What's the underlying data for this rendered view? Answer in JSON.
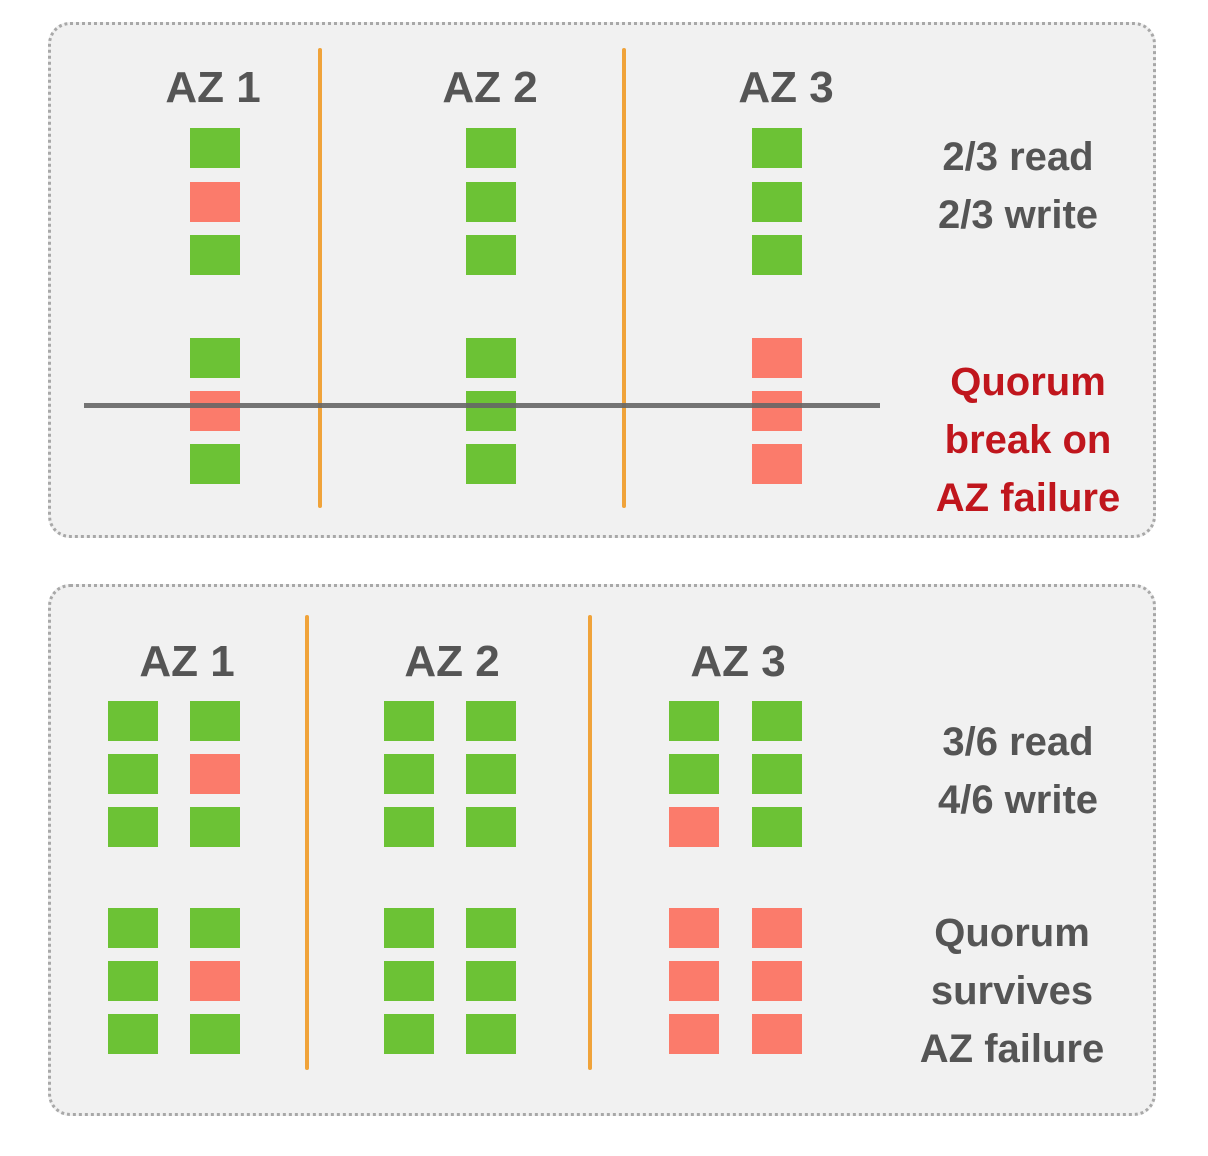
{
  "colors": {
    "healthy": "#6cc235",
    "failed": "#fb7b6b",
    "divider": "#f0a33a",
    "break_line": "#666666",
    "text": "#555555",
    "alert_text": "#c0161d"
  },
  "top": {
    "az_labels": [
      "AZ 1",
      "AZ 2",
      "AZ 3"
    ],
    "quorum_text": [
      "2/3 read",
      "2/3 write"
    ],
    "outcome_text": [
      "Quorum",
      "break on",
      "AZ failure"
    ],
    "outcome_color": "alert",
    "columns": [
      {
        "az": 0,
        "blocks": [
          "ok",
          "fail",
          "ok",
          "ok",
          "fail",
          "ok"
        ]
      },
      {
        "az": 1,
        "blocks": [
          "ok",
          "ok",
          "ok",
          "ok",
          "ok",
          "ok"
        ]
      },
      {
        "az": 2,
        "blocks": [
          "ok",
          "ok",
          "ok",
          "fail",
          "fail",
          "fail"
        ]
      }
    ]
  },
  "bottom": {
    "az_labels": [
      "AZ 1",
      "AZ 2",
      "AZ 3"
    ],
    "quorum_text": [
      "3/6 read",
      "4/6 write"
    ],
    "outcome_text": [
      "Quorum",
      "survives",
      "AZ failure"
    ],
    "outcome_color": "normal",
    "columns": [
      {
        "az": 0,
        "blocks": [
          "ok",
          "ok",
          "ok",
          "ok",
          "ok",
          "ok"
        ]
      },
      {
        "az": 0,
        "blocks": [
          "ok",
          "fail",
          "ok",
          "ok",
          "fail",
          "ok"
        ]
      },
      {
        "az": 1,
        "blocks": [
          "ok",
          "ok",
          "ok",
          "ok",
          "ok",
          "ok"
        ]
      },
      {
        "az": 1,
        "blocks": [
          "ok",
          "ok",
          "ok",
          "ok",
          "ok",
          "ok"
        ]
      },
      {
        "az": 2,
        "blocks": [
          "ok",
          "ok",
          "fail",
          "fail",
          "fail",
          "fail"
        ]
      },
      {
        "az": 2,
        "blocks": [
          "ok",
          "ok",
          "ok",
          "fail",
          "fail",
          "fail"
        ]
      }
    ]
  }
}
